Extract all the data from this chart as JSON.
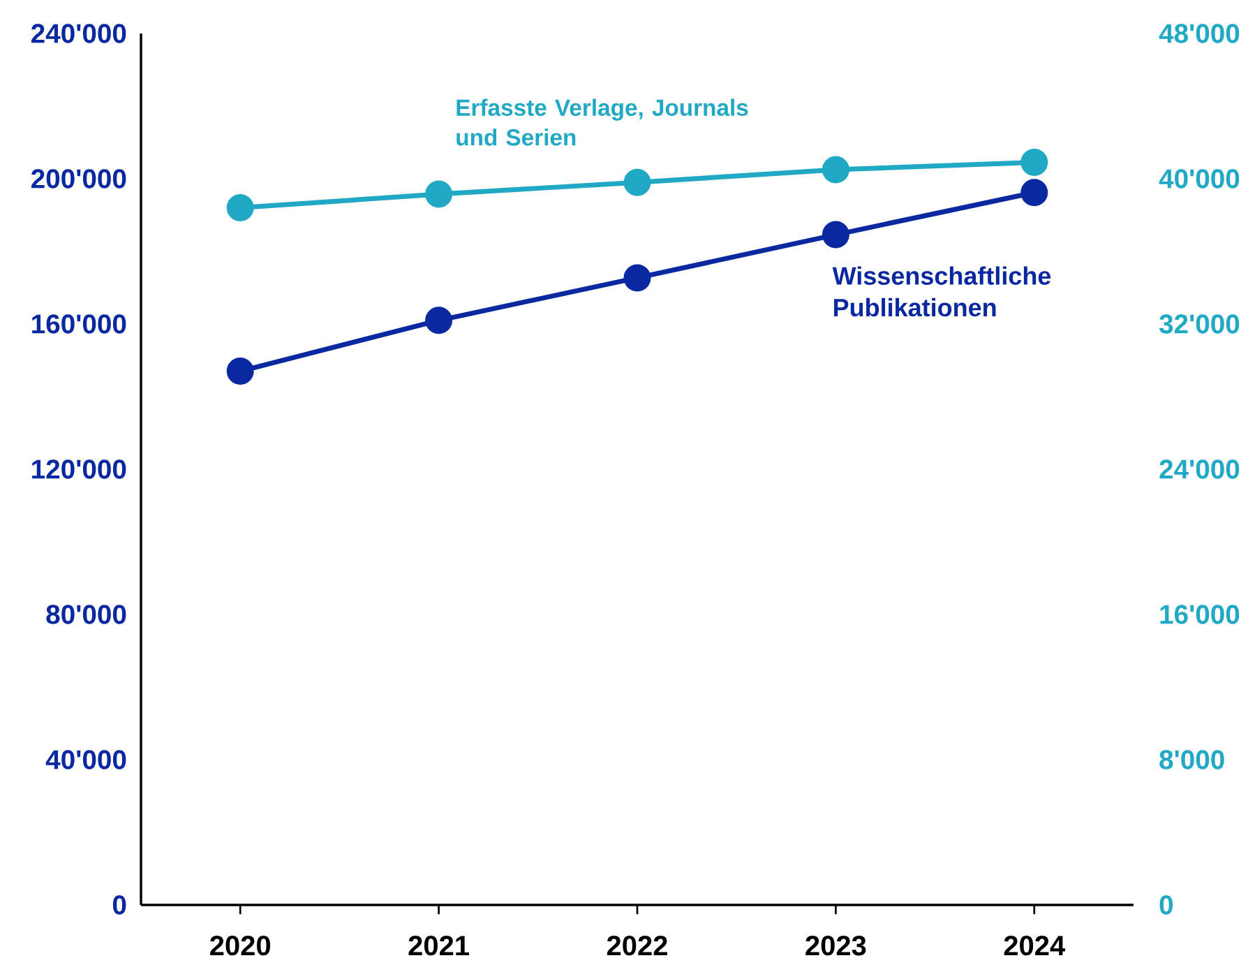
{
  "chart_data": {
    "type": "line",
    "categories": [
      "2020",
      "2021",
      "2022",
      "2023",
      "2024"
    ],
    "series": [
      {
        "name": "Wissenschaftliche Publikationen",
        "color": "#0a28a0",
        "values": [
          147000,
          161000,
          172700,
          184600,
          196200
        ]
      },
      {
        "name": "Erfasste Verlage, Journals und Serien",
        "color": "#20a8c4",
        "axis": "y2",
        "values": [
          38400,
          39150,
          39800,
          40500,
          40900
        ]
      }
    ],
    "ylim": [
      0,
      240000
    ],
    "yticks": [
      {
        "value": 0,
        "label": "0"
      },
      {
        "value": 40000,
        "label": "40'000"
      },
      {
        "value": 80000,
        "label": "80'000"
      },
      {
        "value": 120000,
        "label": "120'000"
      },
      {
        "value": 160000,
        "label": "160'000"
      },
      {
        "value": 200000,
        "label": "200'000"
      },
      {
        "value": 240000,
        "label": "240'000"
      }
    ],
    "y2lim": [
      0,
      48000
    ],
    "y2ticks": [
      {
        "value": 0,
        "label": "0"
      },
      {
        "value": 8000,
        "label": "8'000"
      },
      {
        "value": 16000,
        "label": "16'000"
      },
      {
        "value": 24000,
        "label": "24'000"
      },
      {
        "value": 32000,
        "label": "32'000"
      },
      {
        "value": 40000,
        "label": "40'000"
      },
      {
        "value": 48000,
        "label": "48'000"
      }
    ],
    "marker": "circle",
    "line_style": "solid",
    "grid": false
  }
}
